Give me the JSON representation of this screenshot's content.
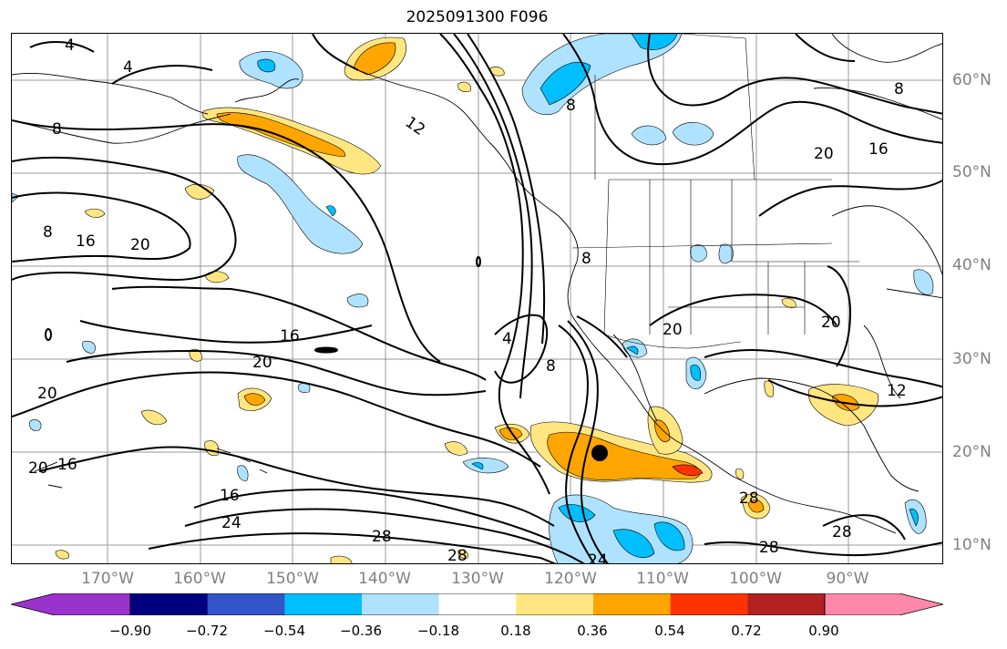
{
  "title": "2025091300 F096",
  "longitude_labels": [
    "170°W",
    "160°W",
    "150°W",
    "140°W",
    "130°W",
    "120°W",
    "110°W",
    "100°W",
    "90°W"
  ],
  "latitude_labels": [
    "60°N",
    "50°N",
    "40°N",
    "30°N",
    "20°N",
    "10°N"
  ],
  "contour_labels": [
    "4",
    "4",
    "8",
    "8",
    "8",
    "8",
    "12",
    "12",
    "16",
    "16",
    "16",
    "16",
    "20",
    "20",
    "20",
    "20",
    "20",
    "20",
    "24",
    "24",
    "28",
    "28",
    "28",
    "28",
    "28",
    "4",
    "8",
    "8",
    "16",
    "20"
  ],
  "colorbar": {
    "tick_labels": [
      "−0.90",
      "−0.72",
      "−0.54",
      "−0.36",
      "−0.18",
      "0.18",
      "0.36",
      "0.54",
      "0.72",
      "0.90"
    ],
    "colors": [
      "#9933cc",
      "#000080",
      "#3355cc",
      "#00bfff",
      "#aee2ff",
      "#ffffff",
      "#ffe680",
      "#ffa500",
      "#ff3300",
      "#b22222",
      "#ff88aa"
    ]
  },
  "marker": {
    "type": "filled-circle",
    "color": "#000000"
  }
}
